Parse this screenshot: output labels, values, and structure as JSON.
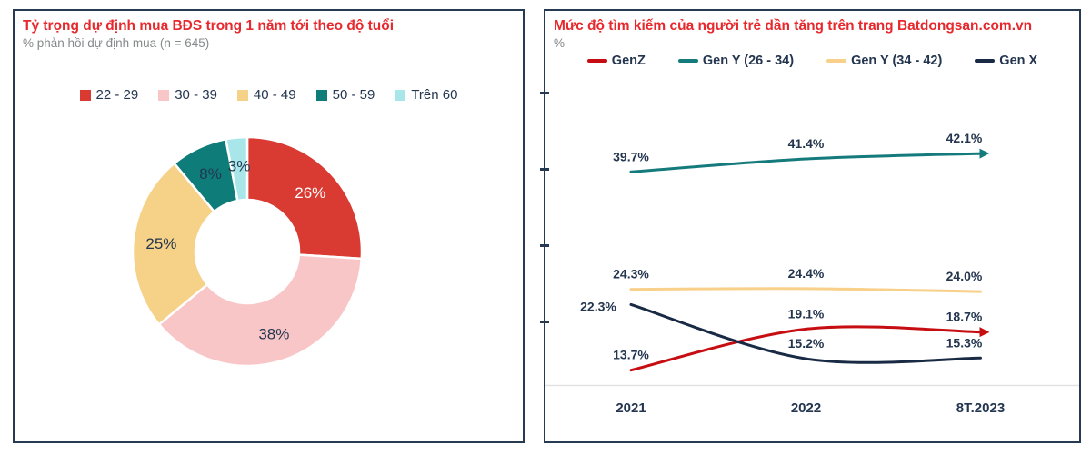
{
  "theme": {
    "panel_border": "#263a52",
    "title_red": "#e7282d",
    "text_navy": "#24364f",
    "subtitle_gray": "#87898b",
    "axis_line_gray": "#e2e2e2",
    "background": "#ffffff"
  },
  "chart_data": [
    {
      "type": "pie",
      "variant": "donut",
      "title": "Tỷ trọng dự định mua BĐS trong 1 năm tới theo độ tuổi",
      "subtitle": "% phản hồi dự định mua (n = 645)",
      "categories": [
        "22 - 29",
        "30 - 39",
        "40 - 49",
        "50 - 59",
        "Trên 60"
      ],
      "values": [
        26,
        38,
        25,
        8,
        3
      ],
      "labels": [
        "26%",
        "38%",
        "25%",
        "8%",
        "3%"
      ],
      "colors": [
        "#d93a31",
        "#f9c6c7",
        "#f6d188",
        "#0e7d79",
        "#a9e6ea"
      ],
      "label_colors": [
        "#ffffff",
        "#24364f",
        "#24364f",
        "#24364f",
        "#24364f"
      ],
      "start_angle_deg": 0,
      "direction": "clockwise",
      "legend_position": "top"
    },
    {
      "type": "line",
      "title": "Mức độ tìm kiếm của người trẻ dần tăng trên trang Batdongsan.com.vn",
      "ylabel": "%",
      "categories": [
        "2021",
        "2022",
        "8T.2023"
      ],
      "series": [
        {
          "name": "GenZ",
          "color": "#c60d11",
          "values": [
            13.7,
            19.1,
            18.7
          ],
          "labels": [
            "13.7%",
            "19.1%",
            "18.7%"
          ],
          "arrow_end": true
        },
        {
          "name": "Gen Y (26 - 34)",
          "color": "#147a7c",
          "values": [
            39.7,
            41.4,
            42.1
          ],
          "labels": [
            "39.7%",
            "41.4%",
            "42.1%"
          ],
          "arrow_end": true
        },
        {
          "name": "Gen Y (34 - 42)",
          "color": "#f8d08a",
          "values": [
            24.3,
            24.4,
            24.0
          ],
          "labels": [
            "24.3%",
            "24.4%",
            "24.0%"
          ],
          "arrow_end": false
        },
        {
          "name": "Gen X",
          "color": "#192a44",
          "values": [
            22.3,
            15.2,
            15.3
          ],
          "labels": [
            "22.3%",
            "15.2%",
            "15.3%"
          ],
          "arrow_end": false
        }
      ],
      "y_ticks_unlabeled": [
        20,
        30,
        40,
        50
      ],
      "ylim": [
        11.7,
        61.2
      ],
      "grid": false,
      "legend_position": "top"
    }
  ]
}
